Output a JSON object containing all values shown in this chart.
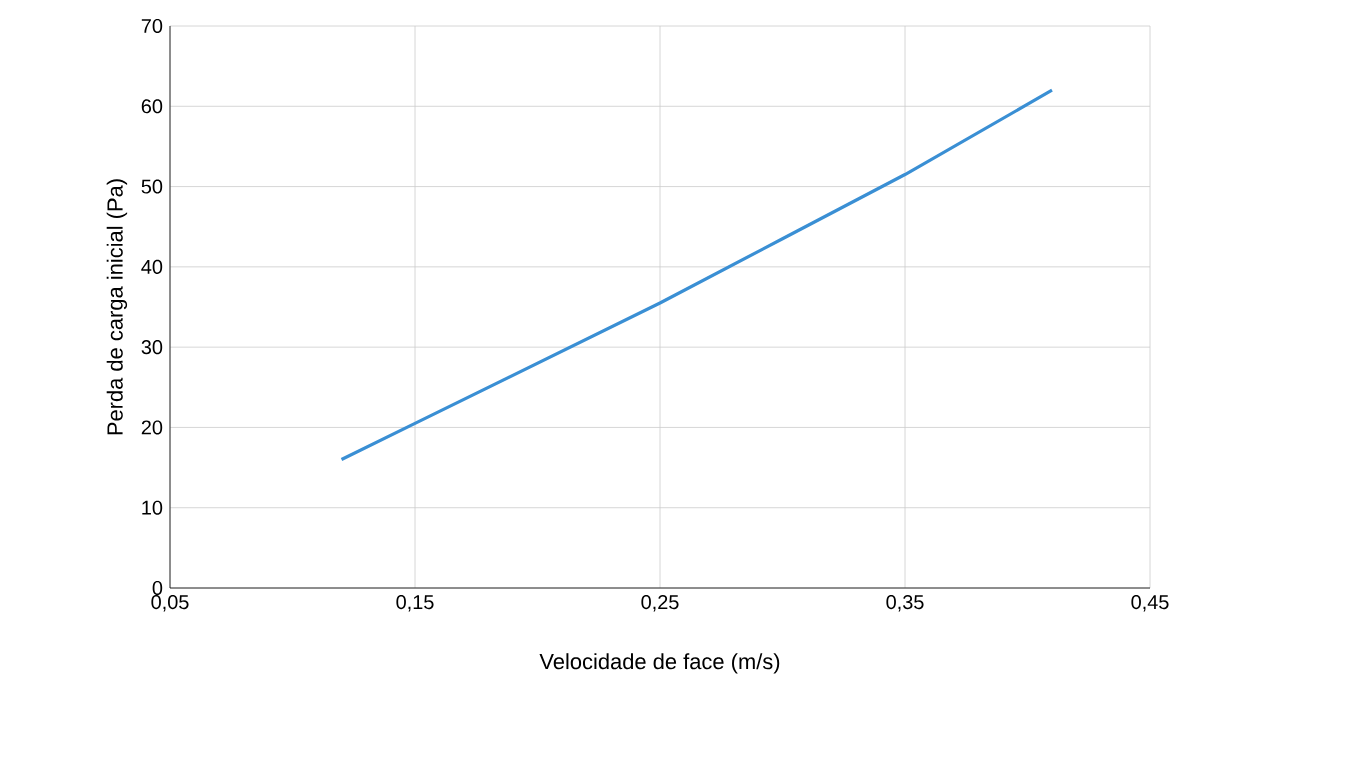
{
  "chart_data": {
    "type": "line",
    "xlabel": "Velocidade de face (m/s)",
    "ylabel": "Perda de carga inicial (Pa)",
    "x": [
      0.12,
      0.15,
      0.2,
      0.25,
      0.3,
      0.35,
      0.41
    ],
    "series": [
      {
        "color": "#3a8fd4",
        "values": [
          16,
          20.5,
          28,
          35.5,
          43.5,
          51.5,
          62
        ]
      }
    ],
    "xlim": [
      0.05,
      0.45
    ],
    "xticks": [
      {
        "value": 0.05,
        "label": "0,05"
      },
      {
        "value": 0.15,
        "label": "0,15"
      },
      {
        "value": 0.25,
        "label": "0,25"
      },
      {
        "value": 0.35,
        "label": "0,35"
      },
      {
        "value": 0.45,
        "label": "0,45"
      }
    ],
    "ylim": [
      0,
      70
    ],
    "yticks": [
      0,
      10,
      20,
      30,
      40,
      50,
      60,
      70
    ],
    "grid": true,
    "marker": "none",
    "line_style": "solid"
  }
}
